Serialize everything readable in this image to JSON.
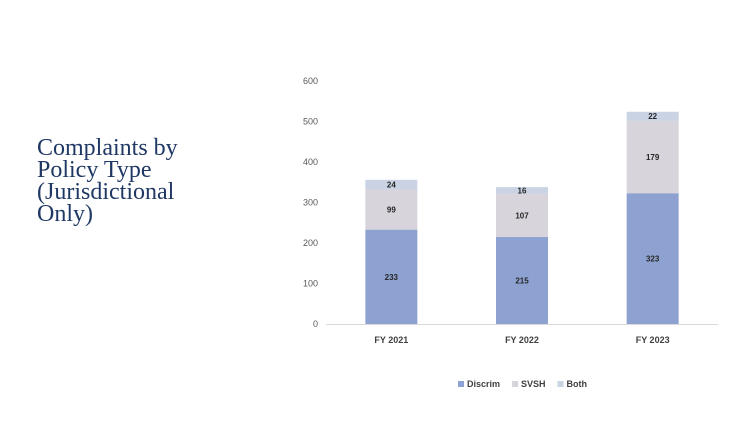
{
  "slide": {
    "title": "Complaints by\nPolicy Type\n(Jurisdictional\nOnly)"
  },
  "chart_data": {
    "type": "bar",
    "stacked": true,
    "categories": [
      "FY 2021",
      "FY 2022",
      "FY 2023"
    ],
    "series": [
      {
        "name": "Discrim",
        "values": [
          233,
          215,
          323
        ],
        "color": "#8ea2d1"
      },
      {
        "name": "SVSH",
        "values": [
          99,
          107,
          179
        ],
        "color": "#d8d4dc"
      },
      {
        "name": "Both",
        "values": [
          24,
          16,
          22
        ],
        "color": "#c9d3e3"
      }
    ],
    "ylim": [
      0,
      600
    ],
    "yticks": [
      0,
      100,
      200,
      300,
      400,
      500,
      600
    ],
    "grid": false,
    "legend": "bottom"
  }
}
